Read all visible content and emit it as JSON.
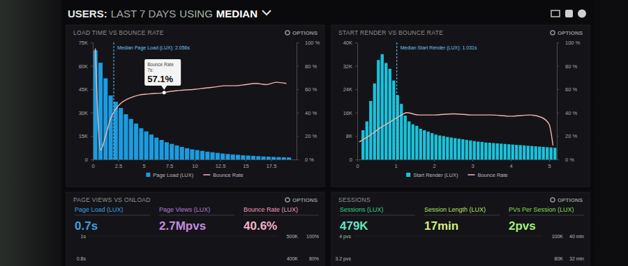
{
  "header": {
    "parts": [
      "USERS:",
      "LAST 7 DAYS",
      "USING",
      "MEDIAN"
    ]
  },
  "options_label": "OPTIONS",
  "chart_data": [
    {
      "type": "bar",
      "title": "LOAD TIME VS BOUNCE RATE",
      "bins": [
        0,
        0.5,
        1,
        1.5,
        2,
        2.5,
        3,
        3.5,
        4,
        4.5,
        5,
        5.5,
        6,
        6.5,
        7,
        7.5,
        8,
        8.5,
        9,
        9.5,
        10,
        10.5,
        11,
        11.5,
        12,
        12.5,
        13,
        13.5,
        14,
        14.5,
        15,
        15.5,
        16,
        16.5,
        17,
        17.5,
        18,
        18.5,
        19,
        19.5
      ],
      "series": [
        {
          "name": "Page Load (LUX)",
          "type": "bar",
          "color": "#1b9be0",
          "values": [
            70000,
            62000,
            52000,
            41000,
            37000,
            33000,
            29000,
            26000,
            23000,
            20000,
            18000,
            16000,
            14000,
            12500,
            11000,
            10000,
            9000,
            8000,
            7200,
            6500,
            6000,
            5500,
            5000,
            4600,
            4200,
            3800,
            3500,
            3200,
            3000,
            2700,
            2500,
            2300,
            2100,
            1900,
            1800,
            1600,
            1500,
            1400,
            1300
          ]
        },
        {
          "name": "Bounce Rate",
          "type": "line",
          "color": "#f2b4ac",
          "axis": "y2",
          "x": [
            0.25,
            0.75,
            1.25,
            1.75,
            2.25,
            2.75,
            3.5,
            4.5,
            5.5,
            7,
            7.5,
            8.5,
            10,
            11,
            12,
            13,
            14,
            15,
            16,
            17,
            18,
            19
          ],
          "values": [
            95,
            8,
            20,
            35,
            43,
            48,
            52,
            55,
            56,
            57.1,
            58,
            59,
            60,
            61,
            62,
            63,
            63,
            64,
            65,
            64,
            66,
            65
          ]
        }
      ],
      "xlim": [
        0,
        20
      ],
      "xticks": [
        0,
        2.5,
        5,
        7.5,
        10,
        12.5,
        15,
        17.5
      ],
      "ylim": [
        0,
        75000
      ],
      "yticks": [
        0,
        {
          "value": 15000,
          "label": "15K"
        },
        {
          "value": 30000,
          "label": "30K"
        },
        {
          "value": 45000,
          "label": "45K"
        },
        {
          "value": 60000,
          "label": "60K"
        },
        {
          "value": 75000,
          "label": "75K"
        }
      ],
      "y2lim": [
        0,
        100
      ],
      "y2ticks": [
        {
          "value": 0,
          "label": "0 %"
        },
        {
          "value": 20,
          "label": "20 %"
        },
        {
          "value": 40,
          "label": "40 %"
        },
        {
          "value": 60,
          "label": "60 %"
        },
        {
          "value": 80,
          "label": "80 %"
        },
        {
          "value": 100,
          "label": "100 %"
        }
      ],
      "annotations": [
        {
          "x": 2.056,
          "text": "Median Page Load (LUX): 2.056s"
        }
      ],
      "tooltip": {
        "title": "Bounce Rate",
        "x_label": "7s:",
        "x": 7,
        "y": 57.1,
        "label": "57.1%"
      },
      "legend": "bottom"
    },
    {
      "type": "bar",
      "title": "START RENDER VS BOUNCE RATE",
      "bins": [
        0.1,
        0.2,
        0.3,
        0.4,
        0.5,
        0.6,
        0.7,
        0.8,
        0.9,
        1,
        1.1,
        1.2,
        1.3,
        1.4,
        1.5,
        1.6,
        1.7,
        1.8,
        1.9,
        2,
        2.1,
        2.2,
        2.3,
        2.4,
        2.5,
        2.6,
        2.7,
        2.8,
        2.9,
        3,
        3.1,
        3.2,
        3.3,
        3.4,
        3.5,
        3.6,
        3.7,
        3.8,
        3.9,
        4,
        4.1,
        4.2,
        4.3,
        4.4,
        4.5,
        4.6,
        4.7,
        4.8,
        4.9,
        5,
        5.1,
        5.2
      ],
      "series": [
        {
          "name": "Start Render (LUX)",
          "type": "bar",
          "color": "#19c3dc",
          "values": [
            10000,
            13000,
            20000,
            26000,
            34000,
            36000,
            33000,
            31000,
            27000,
            22000,
            19000,
            15000,
            13000,
            12000,
            11500,
            10500,
            10000,
            9500,
            9000,
            8500,
            8200,
            8000,
            7700,
            7500,
            7300,
            7100,
            6900,
            6700,
            6500,
            6300,
            6100,
            6000,
            5800,
            5700,
            5600,
            5500,
            5400,
            5300,
            5200,
            5100,
            5000,
            4900,
            4800,
            4700,
            4600,
            4500,
            4400,
            4300,
            4200,
            4100,
            4000
          ]
        },
        {
          "name": "Bounce Rate",
          "type": "line",
          "color": "#f2b4ac",
          "axis": "y2",
          "x": [
            0.05,
            0.3,
            0.6,
            0.9,
            1.1,
            1.3,
            1.6,
            2,
            2.5,
            3,
            3.5,
            4,
            4.5,
            4.8,
            5,
            5.1
          ],
          "values": [
            15,
            20,
            27,
            33,
            37,
            40,
            38,
            38,
            39,
            38,
            38,
            37,
            38,
            36,
            30,
            12
          ]
        }
      ],
      "xlim": [
        0,
        5.2
      ],
      "xticks": [
        0,
        1,
        2,
        3,
        4,
        5
      ],
      "ylim": [
        0,
        40000
      ],
      "yticks": [
        0,
        {
          "value": 8000,
          "label": "8K"
        },
        {
          "value": 16000,
          "label": "16K"
        },
        {
          "value": 24000,
          "label": "24K"
        },
        {
          "value": 32000,
          "label": "32K"
        },
        {
          "value": 40000,
          "label": "40K"
        }
      ],
      "y2lim": [
        0,
        100
      ],
      "y2ticks": [
        {
          "value": 0,
          "label": "0 %"
        },
        {
          "value": 20,
          "label": "20 %"
        },
        {
          "value": 40,
          "label": "40 %"
        },
        {
          "value": 60,
          "label": "60 %"
        },
        {
          "value": 80,
          "label": "80 %"
        },
        {
          "value": 100,
          "label": "100 %"
        }
      ],
      "annotations": [
        {
          "x": 1.031,
          "text": "Median Start Render (LUX): 1.031s"
        }
      ],
      "legend": "bottom"
    }
  ],
  "panels": [
    {
      "title": "PAGE VIEWS VS ONLOAD",
      "kpis": [
        {
          "label": "Page Load (LUX)",
          "value": "0.7s"
        },
        {
          "label": "Page Views (LUX)",
          "value": "2.7Mpvs"
        },
        {
          "label": "Bounce Rate (LUX)",
          "value": "40.6%"
        }
      ],
      "axis_labels": {
        "left": [
          "1s",
          "0.8s"
        ],
        "right": [
          "500K",
          "400K"
        ],
        "right2": [
          "100%",
          "80%"
        ]
      }
    },
    {
      "title": "SESSIONS",
      "kpis": [
        {
          "label": "Sessions (LUX)",
          "value": "479K"
        },
        {
          "label": "Session Length (LUX)",
          "value": "17min"
        },
        {
          "label": "PVs Per Session (LUX)",
          "value": "2pvs"
        }
      ],
      "axis_labels": {
        "left": [
          "4 pvs",
          "3.2 pvs"
        ],
        "right": [
          "100K",
          "80K"
        ],
        "right2": [
          "40 min",
          "32 min"
        ]
      }
    }
  ]
}
